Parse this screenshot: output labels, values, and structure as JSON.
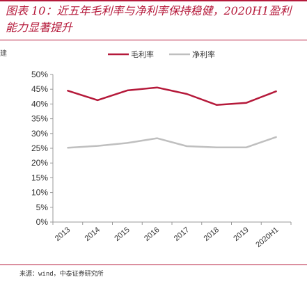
{
  "header": {
    "title": "图表 10：近五年毛利率与净利率保持稳健，2020H1盈利能力显著提升",
    "edge_mark": "建"
  },
  "source": "来源：wind，中泰证券研究所",
  "colors": {
    "accent": "#b5193a",
    "gross": "#b5193a",
    "net": "#bfbfbf"
  },
  "chart_data": {
    "type": "line",
    "categories": [
      "2013",
      "2014",
      "2015",
      "2016",
      "2017",
      "2018",
      "2019",
      "2020H1"
    ],
    "series": [
      {
        "name": "毛利率",
        "values": [
          44.5,
          41.3,
          44.6,
          45.6,
          43.4,
          39.7,
          40.4,
          44.3
        ]
      },
      {
        "name": "净利率",
        "values": [
          25.2,
          25.8,
          26.8,
          28.4,
          25.7,
          25.3,
          25.3,
          28.8
        ]
      }
    ],
    "yticks": [
      "0%",
      "5%",
      "10%",
      "15%",
      "20%",
      "25%",
      "30%",
      "35%",
      "40%",
      "45%",
      "50%"
    ],
    "ylim": [
      0,
      50
    ],
    "legend": "top",
    "grid": false
  }
}
